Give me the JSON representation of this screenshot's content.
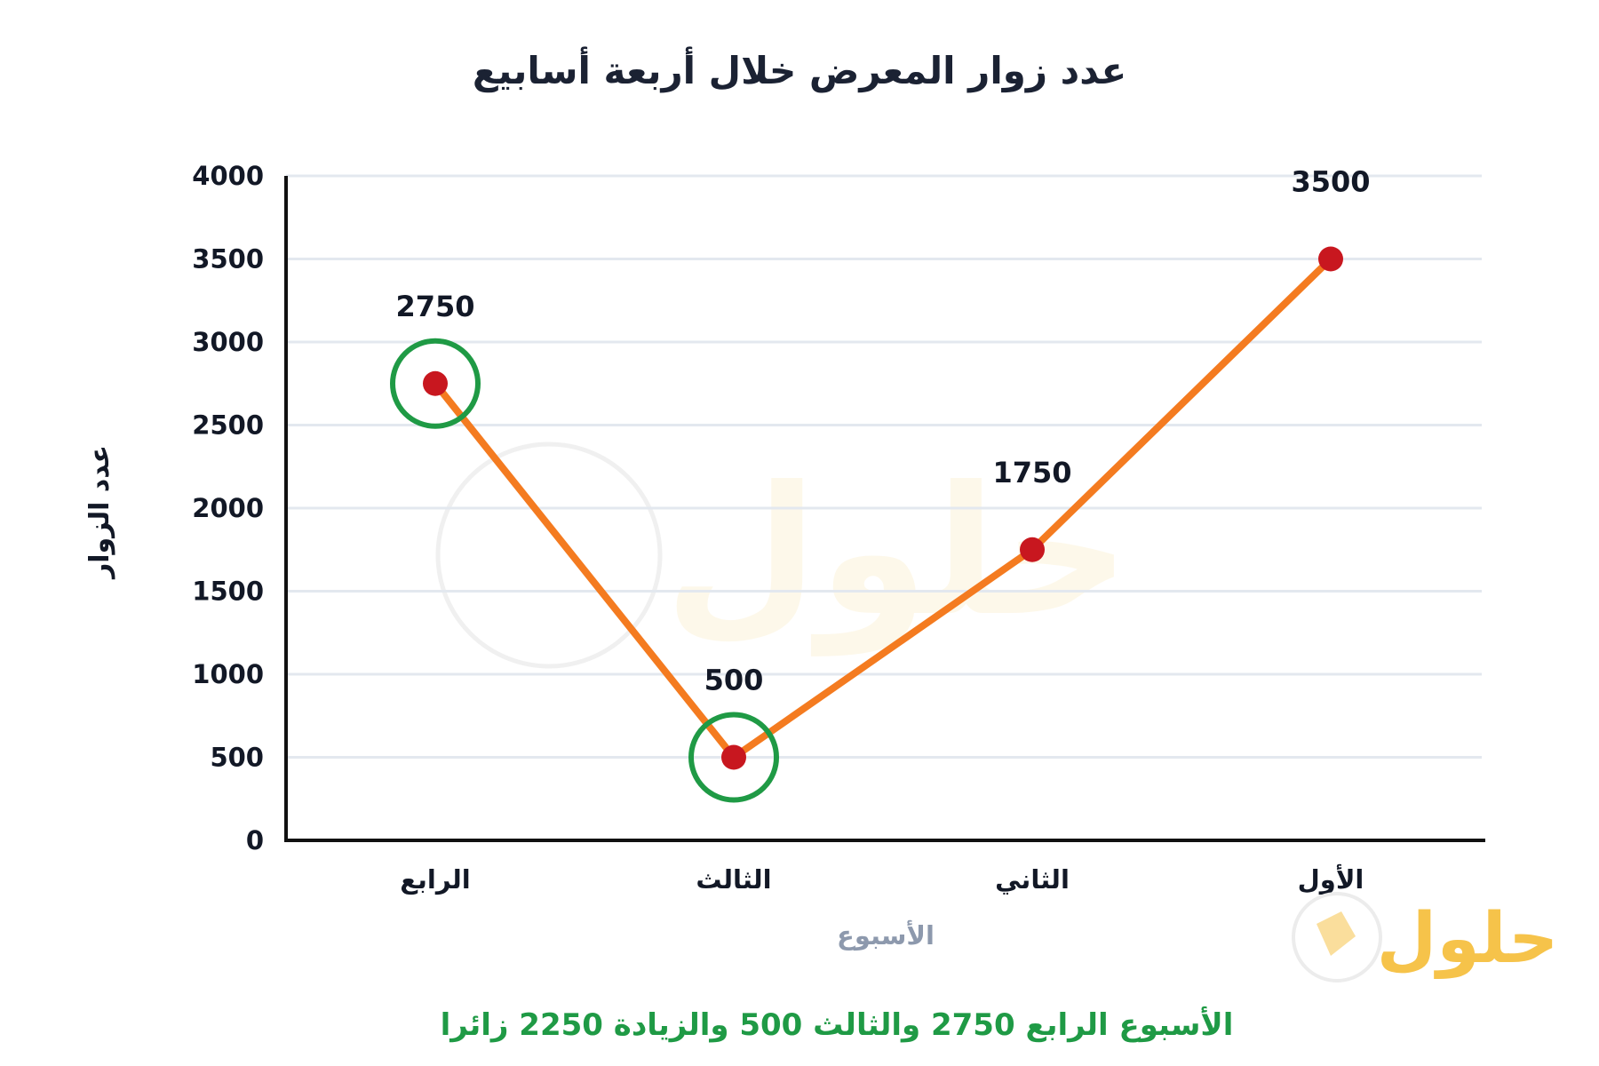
{
  "chart_data": {
    "type": "line",
    "title": "عدد زوار المعرض خلال أربعة أسابيع",
    "xlabel": "الأسبوع",
    "ylabel": "عدد الزوار",
    "categories": [
      "الرابع",
      "الثالث",
      "الثاني",
      "الأول"
    ],
    "series": [
      {
        "values": [
          2750,
          500,
          1750,
          3500
        ]
      }
    ],
    "data_labels": [
      "2750",
      "500",
      "1750",
      "3500"
    ],
    "ylim": [
      0,
      4000
    ],
    "yticks": [
      0,
      500,
      1000,
      1500,
      2000,
      2500,
      3000,
      3500,
      4000
    ],
    "ytick_labels": [
      "0",
      "500",
      "1000",
      "1500",
      "2000",
      "2500",
      "3000",
      "3500",
      "4000"
    ],
    "grid": true,
    "highlighted_categories": [
      "الرابع",
      "الثالث"
    ],
    "colors": {
      "line": "#f47b20",
      "point": "#c8171f",
      "highlight": "#1f9a45",
      "grid": "#e3e8ef",
      "axis": "#111111"
    },
    "annotation": "الأسبوع الرابع 2750 والثالث 500 والزيادة 2250 زائرا"
  },
  "branding": {
    "logo_text": "حلول"
  }
}
